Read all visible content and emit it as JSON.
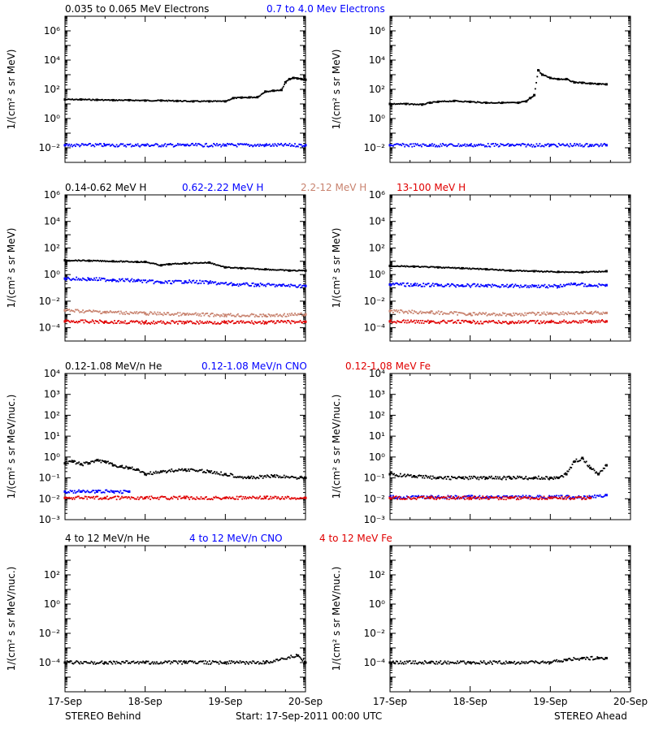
{
  "colors": {
    "black": "#000000",
    "blue": "#0000ff",
    "tan": "#c8826e",
    "red": "#e00000"
  },
  "x_ticks": [
    "17-Sep",
    "18-Sep",
    "19-Sep",
    "20-Sep"
  ],
  "footer": {
    "left": "STEREO Behind",
    "center": "Start: 17-Sep-2011 00:00 UTC",
    "right": "STEREO Ahead"
  },
  "chart_data": [
    {
      "type": "scatter",
      "row": 0,
      "spacecraft": "STEREO Behind",
      "ylabel": "1/(cm² s sr MeV)",
      "yscale": "log",
      "ylim": [
        0.001,
        10000000
      ],
      "ytick_exponents": [
        -2,
        0,
        2,
        4,
        6
      ],
      "xlim": [
        0,
        3
      ],
      "x_ticks": [
        "17-Sep",
        "18-Sep",
        "19-Sep",
        "20-Sep"
      ],
      "series": [
        {
          "name": "0.035 to 0.065 MeV Electrons",
          "color": "black",
          "x": [
            0.0,
            0.2,
            0.4,
            0.6,
            0.8,
            1.0,
            1.2,
            1.4,
            1.6,
            1.8,
            2.0,
            2.1,
            2.2,
            2.3,
            2.4,
            2.5,
            2.6,
            2.7,
            2.75,
            2.8,
            2.85,
            2.9,
            2.95,
            3.0
          ],
          "y": [
            20,
            20,
            19,
            18,
            18,
            17,
            17,
            16,
            15,
            15,
            15,
            25,
            27,
            28,
            29,
            70,
            80,
            90,
            300,
            500,
            600,
            550,
            500,
            450
          ]
        },
        {
          "name": "0.7 to 4.0 Mev Electrons",
          "color": "blue",
          "x": [
            0.0,
            0.5,
            1.0,
            1.5,
            2.0,
            2.5,
            3.0
          ],
          "y": [
            0.015,
            0.015,
            0.015,
            0.015,
            0.015,
            0.015,
            0.015
          ]
        }
      ]
    },
    {
      "type": "scatter",
      "row": 0,
      "spacecraft": "STEREO Ahead",
      "ylabel": "1/(cm² s sr MeV)",
      "yscale": "log",
      "ylim": [
        0.001,
        10000000
      ],
      "ytick_exponents": [
        -2,
        0,
        2,
        4,
        6
      ],
      "xlim": [
        0,
        3
      ],
      "x_ticks": [
        "17-Sep",
        "18-Sep",
        "19-Sep",
        "20-Sep"
      ],
      "series": [
        {
          "name": "0.035 to 0.065 MeV Electrons",
          "color": "black",
          "x": [
            0.0,
            0.2,
            0.4,
            0.5,
            0.6,
            0.8,
            1.0,
            1.2,
            1.4,
            1.6,
            1.7,
            1.75,
            1.8,
            1.85,
            1.9,
            2.0,
            2.1,
            2.2,
            2.3,
            2.4,
            2.5,
            2.6,
            2.7
          ],
          "y": [
            10,
            10,
            9,
            12,
            14,
            16,
            14,
            12,
            12,
            12,
            15,
            25,
            40,
            2000,
            1000,
            600,
            500,
            500,
            300,
            280,
            250,
            230,
            220
          ]
        },
        {
          "name": "0.7 to 4.0 Mev Electrons",
          "color": "blue",
          "x": [
            0.0,
            0.5,
            1.0,
            1.5,
            2.0,
            2.5,
            2.7
          ],
          "y": [
            0.015,
            0.015,
            0.015,
            0.015,
            0.015,
            0.015,
            0.015
          ]
        }
      ]
    },
    {
      "type": "scatter",
      "row": 1,
      "spacecraft": "STEREO Behind",
      "ylabel": "1/(cm² s sr MeV)",
      "yscale": "log",
      "ylim": [
        1e-05,
        1000000
      ],
      "ytick_exponents": [
        -4,
        -2,
        0,
        2,
        4,
        6
      ],
      "xlim": [
        0,
        3
      ],
      "x_ticks": [
        "17-Sep",
        "18-Sep",
        "19-Sep",
        "20-Sep"
      ],
      "series": [
        {
          "name": "0.14-0.62 MeV H",
          "color": "black",
          "x": [
            0.0,
            0.3,
            0.6,
            0.9,
            1.0,
            1.2,
            1.3,
            1.5,
            1.8,
            2.0,
            2.2,
            2.5,
            2.8,
            3.0
          ],
          "y": [
            12,
            11,
            10,
            9,
            9,
            5,
            6,
            7,
            8,
            3.5,
            3,
            2.5,
            2,
            2
          ]
        },
        {
          "name": "0.62-2.22 MeV H",
          "color": "blue",
          "x": [
            0.0,
            0.3,
            0.6,
            0.9,
            1.2,
            1.5,
            1.8,
            2.1,
            2.4,
            2.7,
            3.0
          ],
          "y": [
            0.5,
            0.45,
            0.4,
            0.35,
            0.25,
            0.3,
            0.25,
            0.18,
            0.17,
            0.15,
            0.14
          ]
        },
        {
          "name": "2.2-12 MeV H",
          "color": "tan",
          "x": [
            0.0,
            0.5,
            1.0,
            1.5,
            2.0,
            2.5,
            3.0
          ],
          "y": [
            0.002,
            0.0015,
            0.0012,
            0.001,
            0.0009,
            0.0008,
            0.001
          ]
        },
        {
          "name": "13-100 MeV H",
          "color": "red",
          "x": [
            0.0,
            0.5,
            1.0,
            1.5,
            2.0,
            2.5,
            3.0
          ],
          "y": [
            0.0003,
            0.00028,
            0.00025,
            0.00025,
            0.00025,
            0.00025,
            0.00028
          ]
        }
      ]
    },
    {
      "type": "scatter",
      "row": 1,
      "spacecraft": "STEREO Ahead",
      "ylabel": "1/(cm² s sr MeV)",
      "yscale": "log",
      "ylim": [
        1e-05,
        1000000
      ],
      "ytick_exponents": [
        -4,
        -2,
        0,
        2,
        4,
        6
      ],
      "xlim": [
        0,
        3
      ],
      "x_ticks": [
        "17-Sep",
        "18-Sep",
        "19-Sep",
        "20-Sep"
      ],
      "series": [
        {
          "name": "0.14-0.62 MeV H",
          "color": "black",
          "x": [
            0.0,
            0.3,
            0.6,
            0.9,
            1.2,
            1.5,
            1.8,
            2.1,
            2.4,
            2.7
          ],
          "y": [
            4.5,
            4,
            3.5,
            3,
            2.5,
            2,
            1.8,
            1.6,
            1.5,
            1.8
          ]
        },
        {
          "name": "0.62-2.22 MeV H",
          "color": "blue",
          "x": [
            0.0,
            0.3,
            0.6,
            0.9,
            1.2,
            1.5,
            1.8,
            2.1,
            2.3,
            2.5,
            2.7
          ],
          "y": [
            0.18,
            0.17,
            0.16,
            0.15,
            0.15,
            0.14,
            0.14,
            0.13,
            0.2,
            0.15,
            0.16
          ]
        },
        {
          "name": "2.2-12 MeV H",
          "color": "tan",
          "x": [
            0.0,
            0.5,
            1.0,
            1.5,
            2.0,
            2.5,
            2.7
          ],
          "y": [
            0.0018,
            0.0014,
            0.0011,
            0.001,
            0.0012,
            0.0013,
            0.0013
          ]
        },
        {
          "name": "13-100 MeV H",
          "color": "red",
          "x": [
            0.0,
            0.5,
            1.0,
            1.5,
            2.0,
            2.5,
            2.7
          ],
          "y": [
            0.0003,
            0.00028,
            0.00027,
            0.00025,
            0.00027,
            0.0003,
            0.0003
          ]
        }
      ]
    },
    {
      "type": "scatter",
      "row": 2,
      "spacecraft": "STEREO Behind",
      "ylabel": "1/(cm² s sr MeV/nuc.)",
      "yscale": "log",
      "ylim": [
        0.001,
        10000
      ],
      "ytick_exponents": [
        -3,
        -2,
        -1,
        0,
        1,
        2,
        3,
        4
      ],
      "xlim": [
        0,
        3
      ],
      "x_ticks": [
        "17-Sep",
        "18-Sep",
        "19-Sep",
        "20-Sep"
      ],
      "series": [
        {
          "name": "0.12-1.08 MeV/n He",
          "color": "black",
          "x": [
            0.0,
            0.1,
            0.2,
            0.3,
            0.4,
            0.5,
            0.6,
            0.7,
            0.8,
            0.9,
            1.0,
            1.2,
            1.5,
            1.8,
            2.0,
            2.3,
            2.6,
            3.0
          ],
          "y": [
            0.5,
            0.6,
            0.45,
            0.5,
            0.7,
            0.6,
            0.4,
            0.35,
            0.3,
            0.25,
            0.15,
            0.2,
            0.25,
            0.2,
            0.15,
            0.1,
            0.12,
            0.1
          ]
        },
        {
          "name": "0.12-1.08 MeV/n CNO",
          "color": "blue",
          "x": [
            0.0,
            0.2,
            0.4,
            0.6,
            0.8
          ],
          "y": [
            0.022,
            0.022,
            0.022,
            0.022,
            0.022
          ]
        },
        {
          "name": "0.12-1.08 MeV Fe",
          "color": "red",
          "x": [
            0.0,
            0.5,
            1.0,
            1.5,
            2.0,
            2.5,
            3.0
          ],
          "y": [
            0.011,
            0.011,
            0.011,
            0.011,
            0.011,
            0.011,
            0.011
          ]
        }
      ]
    },
    {
      "type": "scatter",
      "row": 2,
      "spacecraft": "STEREO Ahead",
      "ylabel": "1/(cm² s sr MeV/nuc.)",
      "yscale": "log",
      "ylim": [
        0.001,
        10000
      ],
      "ytick_exponents": [
        -3,
        -2,
        -1,
        0,
        1,
        2,
        3,
        4
      ],
      "xlim": [
        0,
        3
      ],
      "x_ticks": [
        "17-Sep",
        "18-Sep",
        "19-Sep",
        "20-Sep"
      ],
      "series": [
        {
          "name": "0.12-1.08 MeV/n He",
          "color": "black",
          "x": [
            0.0,
            0.3,
            0.6,
            0.9,
            1.2,
            1.5,
            1.8,
            2.0,
            2.1,
            2.2,
            2.3,
            2.4,
            2.5,
            2.6,
            2.7
          ],
          "y": [
            0.15,
            0.12,
            0.1,
            0.1,
            0.1,
            0.1,
            0.1,
            0.1,
            0.1,
            0.15,
            0.6,
            0.9,
            0.3,
            0.15,
            0.4
          ]
        },
        {
          "name": "0.12-1.08 MeV/n CNO",
          "color": "blue",
          "x": [
            0.0,
            0.5,
            1.0,
            1.5,
            2.0,
            2.5,
            2.7
          ],
          "y": [
            0.012,
            0.012,
            0.012,
            0.012,
            0.012,
            0.012,
            0.015
          ]
        },
        {
          "name": "0.12-1.08 MeV Fe",
          "color": "red",
          "x": [
            0.0,
            0.5,
            1.0,
            1.5,
            2.0,
            2.5
          ],
          "y": [
            0.011,
            0.011,
            0.011,
            0.011,
            0.011,
            0.011
          ]
        }
      ]
    },
    {
      "type": "scatter",
      "row": 3,
      "spacecraft": "STEREO Behind",
      "ylabel": "1/(cm² s sr MeV/nuc.)",
      "yscale": "log",
      "ylim": [
        1e-06,
        10000
      ],
      "ytick_exponents": [
        -4,
        -2,
        0,
        2
      ],
      "xlim": [
        0,
        3
      ],
      "x_ticks": [
        "17-Sep",
        "18-Sep",
        "19-Sep",
        "20-Sep"
      ],
      "series": [
        {
          "name": "4 to 12 MeV/n He",
          "color": "black",
          "x": [
            0.0,
            0.5,
            1.0,
            1.5,
            2.0,
            2.5,
            2.9,
            3.0
          ],
          "y": [
            0.0001,
            0.0001,
            0.0001,
            0.0001,
            0.0001,
            0.0001,
            0.0003,
            0.0001
          ]
        },
        {
          "name": "4 to 12 MeV/n CNO",
          "color": "blue",
          "x": [],
          "y": []
        },
        {
          "name": "4 to 12 MeV Fe",
          "color": "red",
          "x": [],
          "y": []
        }
      ]
    },
    {
      "type": "scatter",
      "row": 3,
      "spacecraft": "STEREO Ahead",
      "ylabel": "1/(cm² s sr MeV/nuc.)",
      "yscale": "log",
      "ylim": [
        1e-06,
        10000
      ],
      "ytick_exponents": [
        -4,
        -2,
        0,
        2
      ],
      "xlim": [
        0,
        3
      ],
      "x_ticks": [
        "17-Sep",
        "18-Sep",
        "19-Sep",
        "20-Sep"
      ],
      "series": [
        {
          "name": "4 to 12 MeV/n He",
          "color": "black",
          "x": [
            0.0,
            0.5,
            1.0,
            1.5,
            2.0,
            2.2,
            2.4,
            2.6,
            2.7
          ],
          "y": [
            0.0001,
            0.0001,
            0.0001,
            0.0001,
            0.0001,
            0.00015,
            0.0002,
            0.0002,
            0.0002
          ]
        },
        {
          "name": "4 to 12 MeV/n CNO",
          "color": "blue",
          "x": [],
          "y": []
        },
        {
          "name": "4 to 12 MeV Fe",
          "color": "red",
          "x": [],
          "y": []
        }
      ]
    }
  ]
}
